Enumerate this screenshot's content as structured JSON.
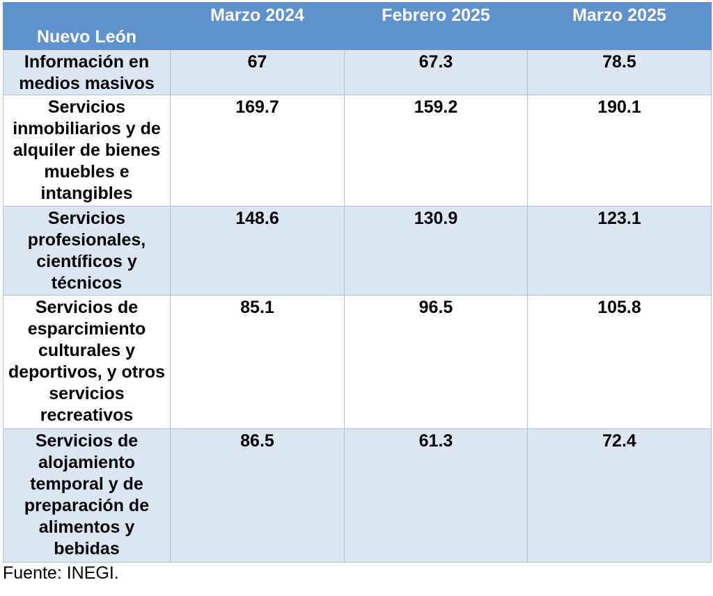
{
  "table": {
    "corner_label": "Nuevo León",
    "columns": [
      "Marzo 2024",
      "Febrero 2025",
      "Marzo 2025"
    ],
    "rows": [
      {
        "label": "Información en medios masivos",
        "values": [
          "67",
          "67.3",
          "78.5"
        ]
      },
      {
        "label": "Servicios inmobiliarios y de alquiler de bienes muebles e intangibles",
        "values": [
          "169.7",
          "159.2",
          "190.1"
        ]
      },
      {
        "label": "Servicios profesionales, científicos y técnicos",
        "values": [
          "148.6",
          "130.9",
          "123.1"
        ]
      },
      {
        "label": "Servicios de esparcimiento culturales y deportivos, y otros servicios recreativos",
        "values": [
          "85.1",
          "96.5",
          "105.8"
        ]
      },
      {
        "label": "Servicios de alojamiento temporal y de preparación de alimentos y bebidas",
        "values": [
          "86.5",
          "61.3",
          "72.4"
        ]
      }
    ],
    "source": "Fuente: INEGI."
  },
  "colors": {
    "header_background": "#5f91cd",
    "header_text": "#ffffff",
    "row_shade": "#dce6f2",
    "row_plain": "#ffffff",
    "grid": "#aac3e3"
  },
  "chart_data": {
    "type": "table",
    "title": "",
    "row_header": "Nuevo León",
    "columns": [
      "Marzo 2024",
      "Febrero 2025",
      "Marzo 2025"
    ],
    "categories": [
      "Información en medios masivos",
      "Servicios inmobiliarios y de alquiler de bienes muebles e intangibles",
      "Servicios profesionales, científicos y técnicos",
      "Servicios de esparcimiento culturales y deportivos, y otros servicios recreativos",
      "Servicios de alojamiento temporal y de preparación de alimentos y bebidas"
    ],
    "series": [
      {
        "name": "Marzo 2024",
        "values": [
          67,
          169.7,
          148.6,
          85.1,
          86.5
        ]
      },
      {
        "name": "Febrero 2025",
        "values": [
          67.3,
          159.2,
          130.9,
          96.5,
          61.3
        ]
      },
      {
        "name": "Marzo 2025",
        "values": [
          78.5,
          190.1,
          123.1,
          105.8,
          72.4
        ]
      }
    ],
    "source": "Fuente: INEGI."
  }
}
